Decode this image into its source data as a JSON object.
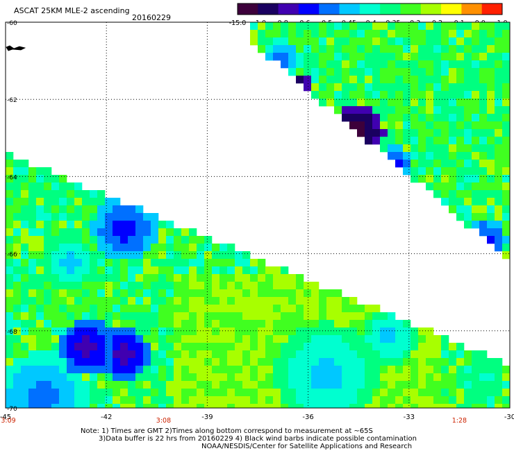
{
  "header": {
    "title": "ASCAT 25KM MLE-2 ascending",
    "date": "20160229"
  },
  "colorbar": {
    "labels": [
      "-15.0",
      "-1.0",
      "-0.8",
      "-0.6",
      "-0.5",
      "-0.45",
      "-0.4",
      "-0.35",
      "-0.3",
      "-0.2",
      "-0.1",
      "0.0",
      "1.0"
    ],
    "colors": [
      "#3d003b",
      "#1a0060",
      "#4000b0",
      "#0000ff",
      "#0070ff",
      "#00c8ff",
      "#00ffd0",
      "#00ff80",
      "#40ff20",
      "#a8ff00",
      "#ffff00",
      "#ff9000",
      "#ff2000"
    ]
  },
  "map": {
    "lat_labels": [
      "-60",
      "-62",
      "-64",
      "-66",
      "-68",
      "-70"
    ],
    "lon_labels": [
      "-45",
      "-42",
      "-39",
      "-36",
      "-33",
      "-30"
    ],
    "time_labels": [
      {
        "text": "3:09",
        "lon": -45
      },
      {
        "text": "3:08",
        "lon": -40.3
      },
      {
        "text": "1:28",
        "lon": -31.5
      }
    ],
    "extent": {
      "lon_min": -45,
      "lon_max": -30,
      "lat_min": -70,
      "lat_max": -60
    },
    "colors": {
      "grid": "#000000",
      "time_label": "#cc2200",
      "land": "#000000"
    }
  },
  "notes": {
    "line1": "Note: 1) Times are GMT 2)Times along bottom correspond to measurement at ~65S",
    "line2": "3)Data buffer is 22 hrs from 20160229 4) Black wind barbs indicate possible contamination",
    "line3": "NOAA/NESDIS/Center for Satellite Applications and Research"
  }
}
